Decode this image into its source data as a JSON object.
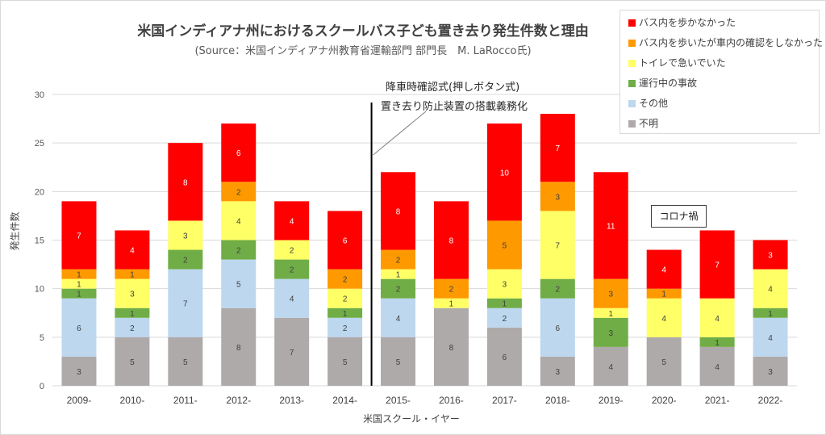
{
  "chart_data": {
    "type": "bar",
    "stacked": true,
    "title": "米国インディアナ州におけるスクールバス子ども置き去り発生件数と理由",
    "subtitle": "(Source：米国インディアナ州教育省運輸部門 部門長　M. LaRocco氏)",
    "xlabel": "米国スクール・イヤー",
    "ylabel": "発生件数",
    "ylim": [
      0,
      30
    ],
    "yticks": [
      0,
      5,
      10,
      15,
      20,
      25,
      30
    ],
    "grid": true,
    "legend_position": "top-right",
    "categories": [
      "2009-",
      "2010-",
      "2011-",
      "2012-",
      "2013-",
      "2014-",
      "2015-",
      "2016-",
      "2017-",
      "2018-",
      "2019-",
      "2020-",
      "2021-",
      "2022-"
    ],
    "series": [
      {
        "name": "不明",
        "color": "#aeaaaa",
        "label_color": "#404040",
        "values": [
          3,
          5,
          5,
          8,
          7,
          5,
          5,
          8,
          6,
          3,
          4,
          5,
          4,
          3
        ]
      },
      {
        "name": "その他",
        "color": "#bdd7ee",
        "label_color": "#404040",
        "values": [
          6,
          2,
          7,
          5,
          4,
          2,
          4,
          0,
          2,
          6,
          0,
          0,
          0,
          4
        ]
      },
      {
        "name": "運行中の事故",
        "color": "#70ad47",
        "label_color": "#404040",
        "values": [
          1,
          1,
          2,
          2,
          2,
          1,
          2,
          0,
          1,
          2,
          3,
          0,
          1,
          1
        ]
      },
      {
        "name": "トイレで急いでいた",
        "color": "#ffff66",
        "label_color": "#404040",
        "values": [
          1,
          3,
          3,
          4,
          2,
          2,
          1,
          1,
          3,
          7,
          1,
          4,
          4,
          4
        ]
      },
      {
        "name": "バス内を歩いたが車内の確認をしなかった",
        "color": "#ff9900",
        "label_color": "#404040",
        "values": [
          1,
          1,
          0,
          2,
          0,
          2,
          2,
          2,
          5,
          3,
          3,
          1,
          0,
          0
        ]
      },
      {
        "name": "バス内を歩かなかった",
        "color": "#ff0000",
        "label_color": "#ffffff",
        "values": [
          7,
          4,
          8,
          6,
          4,
          6,
          8,
          8,
          10,
          7,
          11,
          4,
          7,
          3
        ]
      }
    ],
    "legend_order": [
      "バス内を歩かなかった",
      "バス内を歩いたが車内の確認をしなかった",
      "トイレで急いでいた",
      "運行中の事故",
      "その他",
      "不明"
    ],
    "annotations": {
      "divider_between": [
        "2014-",
        "2015-"
      ],
      "divider_label_1": "降車時確認式(押しボタン式)",
      "divider_label_2": "置き去り防止装置の搭載義務化",
      "corona_label": "コロナ禍"
    }
  }
}
